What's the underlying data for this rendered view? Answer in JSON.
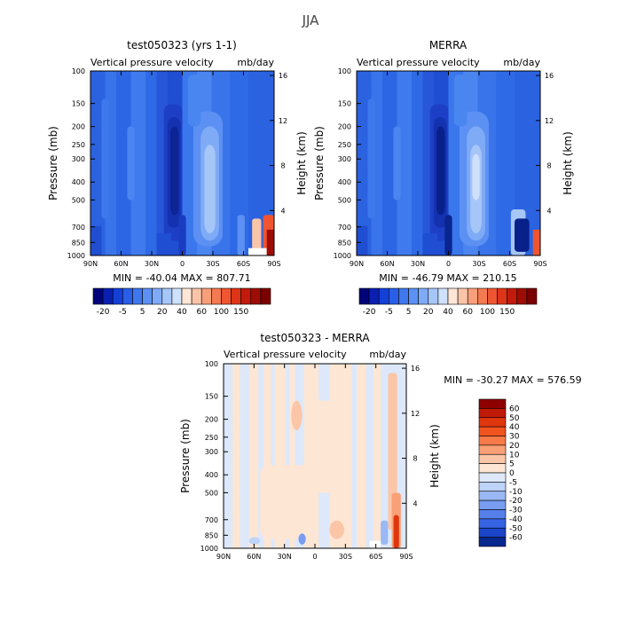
{
  "figure_title": "JJA",
  "chart_data": [
    {
      "type": "heatmap",
      "title": "test050323 (yrs 1-1)",
      "subtitle_left": "Vertical pressure velocity",
      "subtitle_right": "mb/day",
      "ylabel": "Pressure (mb)",
      "y2label": "Height (km)",
      "xticks": [
        "90N",
        "60N",
        "30N",
        "0",
        "30S",
        "60S",
        "90S"
      ],
      "yticks": [
        100,
        150,
        200,
        250,
        300,
        400,
        500,
        700,
        850,
        1000
      ],
      "y2ticks": [
        16,
        12,
        8,
        4
      ],
      "ylim": [
        1000,
        100
      ],
      "xlim": [
        "90N",
        "90S"
      ],
      "log_pressure_axis": true,
      "stats": "MIN = -40.04   MAX = 807.71",
      "colorbar_labels": [
        "-20",
        "-5",
        "5",
        "20",
        "40",
        "60",
        "100",
        "150"
      ],
      "colorbar_colors": [
        "#02027a",
        "#0a1fb0",
        "#1540d8",
        "#2a5ee8",
        "#3f77ee",
        "#5c90f2",
        "#7fabf6",
        "#a6c6f8",
        "#cfe0fb",
        "#fde6d6",
        "#f9c4a8",
        "#f79f7a",
        "#f47a52",
        "#ee5530",
        "#de3418",
        "#c21a0c",
        "#9e0c06",
        "#7a0000"
      ]
    },
    {
      "type": "heatmap",
      "title": "MERRA",
      "subtitle_left": "Vertical pressure velocity",
      "subtitle_right": "mb/day",
      "ylabel": "Pressure (mb)",
      "y2label": "Height (km)",
      "xticks": [
        "90N",
        "60N",
        "30N",
        "0",
        "30S",
        "60S",
        "90S"
      ],
      "yticks": [
        100,
        150,
        200,
        250,
        300,
        400,
        500,
        700,
        850,
        1000
      ],
      "y2ticks": [
        16,
        12,
        8,
        4
      ],
      "ylim": [
        1000,
        100
      ],
      "xlim": [
        "90N",
        "90S"
      ],
      "log_pressure_axis": true,
      "stats": "MIN = -46.79   MAX = 210.15",
      "colorbar_labels": [
        "-20",
        "-5",
        "5",
        "20",
        "40",
        "60",
        "100",
        "150"
      ],
      "colorbar_colors": [
        "#02027a",
        "#0a1fb0",
        "#1540d8",
        "#2a5ee8",
        "#3f77ee",
        "#5c90f2",
        "#7fabf6",
        "#a6c6f8",
        "#cfe0fb",
        "#fde6d6",
        "#f9c4a8",
        "#f79f7a",
        "#f47a52",
        "#ee5530",
        "#de3418",
        "#c21a0c",
        "#9e0c06",
        "#7a0000"
      ]
    },
    {
      "type": "heatmap",
      "title": "test050323 - MERRA",
      "subtitle_left": "Vertical pressure velocity",
      "subtitle_right": "mb/day",
      "ylabel": "Pressure (mb)",
      "y2label": "Height (km)",
      "xticks": [
        "90N",
        "60N",
        "30N",
        "0",
        "30S",
        "60S",
        "90S"
      ],
      "yticks": [
        100,
        150,
        200,
        250,
        300,
        400,
        500,
        700,
        850,
        1000
      ],
      "y2ticks": [
        16,
        12,
        8,
        4
      ],
      "ylim": [
        1000,
        100
      ],
      "xlim": [
        "90N",
        "90S"
      ],
      "log_pressure_axis": true,
      "stats": "MIN = -30.27   MAX = 576.59",
      "colorbar_labels": [
        "60",
        "50",
        "40",
        "30",
        "20",
        "10",
        "5",
        "0",
        "-5",
        "-10",
        "-20",
        "-30",
        "-40",
        "-50",
        "-60"
      ],
      "colorbar_colors": [
        "#8e0000",
        "#c01a08",
        "#e0360e",
        "#f25420",
        "#f77a48",
        "#f9a077",
        "#fbc6a8",
        "#fde6d4",
        "#dde9fb",
        "#bdd3f8",
        "#9ab8f4",
        "#779cf0",
        "#5580ea",
        "#3563e2",
        "#1a45c8",
        "#06288e"
      ]
    }
  ]
}
